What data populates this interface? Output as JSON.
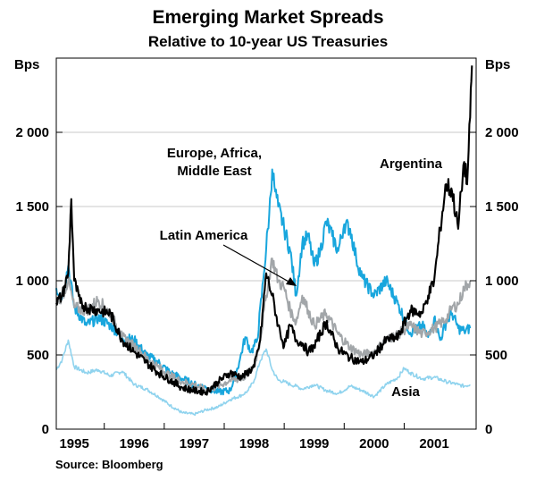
{
  "chart_data": {
    "type": "line",
    "title": "Emerging Market Spreads",
    "subtitle": "Relative to 10-year US Treasuries",
    "ylabel_left": "Bps",
    "ylabel_right": "Bps",
    "ylim": [
      0,
      2500
    ],
    "yticks": [
      0,
      500,
      1000,
      1500,
      2000
    ],
    "ytick_labels": [
      "0",
      "500",
      "1 000",
      "1 500",
      "2 000"
    ],
    "xlim": [
      1994.7,
      2001.7
    ],
    "xticks": [
      1995,
      1996,
      1997,
      1998,
      1999,
      2000,
      2001
    ],
    "xtick_labels": [
      "1995",
      "1996",
      "1997",
      "1998",
      "1999",
      "2000",
      "2001"
    ],
    "source": "Source: Bloomberg",
    "series": [
      {
        "name": "Asia",
        "label": "Asia",
        "color": "#8fd3ee",
        "x": [
          1994.7,
          1994.8,
          1994.9,
          1995.0,
          1995.2,
          1995.4,
          1995.6,
          1995.8,
          1996.0,
          1996.2,
          1996.4,
          1996.6,
          1996.8,
          1997.0,
          1997.2,
          1997.4,
          1997.6,
          1997.8,
          1997.9,
          1998.0,
          1998.1,
          1998.2,
          1998.3,
          1998.4,
          1998.5,
          1998.6,
          1998.7,
          1998.8,
          1999.0,
          1999.2,
          1999.4,
          1999.6,
          1999.8,
          2000.0,
          2000.2,
          2000.4,
          2000.5,
          2000.6,
          2000.8,
          2001.0,
          2001.2,
          2001.4,
          2001.5,
          2001.6
        ],
        "y": [
          400,
          470,
          600,
          420,
          380,
          400,
          360,
          390,
          300,
          270,
          220,
          160,
          110,
          100,
          130,
          150,
          200,
          230,
          260,
          330,
          460,
          540,
          400,
          330,
          320,
          300,
          290,
          270,
          300,
          260,
          240,
          290,
          260,
          220,
          300,
          350,
          410,
          380,
          340,
          350,
          320,
          300,
          290,
          300
        ]
      },
      {
        "name": "Europe, Africa, Middle East",
        "label": "Europe, Africa,\nMiddle East",
        "color": "#18a6dd",
        "x": [
          1994.7,
          1994.8,
          1994.9,
          1995.0,
          1995.2,
          1995.4,
          1995.6,
          1995.8,
          1996.0,
          1996.2,
          1996.4,
          1996.6,
          1996.8,
          1997.0,
          1997.2,
          1997.4,
          1997.6,
          1997.75,
          1997.85,
          1997.95,
          1998.05,
          1998.15,
          1998.25,
          1998.3,
          1998.35,
          1998.4,
          1998.5,
          1998.6,
          1998.7,
          1998.8,
          1998.9,
          1999.0,
          1999.1,
          1999.2,
          1999.3,
          1999.4,
          1999.5,
          1999.6,
          1999.7,
          1999.8,
          2000.0,
          2000.2,
          2000.4,
          2000.6,
          2000.8,
          2000.9,
          2001.0,
          2001.1,
          2001.2,
          2001.3,
          2001.4,
          2001.5,
          2001.6
        ],
        "y": [
          950,
          900,
          1100,
          820,
          700,
          750,
          700,
          620,
          600,
          500,
          450,
          380,
          340,
          300,
          280,
          250,
          260,
          450,
          620,
          520,
          600,
          1000,
          1450,
          1750,
          1600,
          1500,
          1350,
          1200,
          900,
          1250,
          1300,
          1100,
          1200,
          1400,
          1300,
          1200,
          1380,
          1350,
          1150,
          1020,
          900,
          1000,
          840,
          650,
          700,
          620,
          750,
          600,
          720,
          780,
          680,
          660,
          680
        ]
      },
      {
        "name": "Latin America",
        "label": "Latin America",
        "color": "#a2a6a9",
        "x": [
          1994.7,
          1994.8,
          1994.9,
          1995.0,
          1995.2,
          1995.4,
          1995.6,
          1995.8,
          1996.0,
          1996.2,
          1996.4,
          1996.6,
          1996.8,
          1997.0,
          1997.2,
          1997.4,
          1997.6,
          1997.8,
          1998.0,
          1998.1,
          1998.2,
          1998.3,
          1998.4,
          1998.5,
          1998.6,
          1998.7,
          1998.8,
          1998.9,
          1999.0,
          1999.2,
          1999.4,
          1999.6,
          1999.8,
          2000.0,
          2000.2,
          2000.4,
          2000.6,
          2000.8,
          2001.0,
          2001.2,
          2001.3,
          2001.4,
          2001.5,
          2001.6
        ],
        "y": [
          850,
          900,
          1000,
          820,
          800,
          870,
          780,
          620,
          560,
          480,
          420,
          360,
          320,
          300,
          260,
          290,
          330,
          340,
          420,
          600,
          900,
          1150,
          1000,
          950,
          800,
          720,
          900,
          800,
          700,
          780,
          640,
          550,
          500,
          520,
          600,
          640,
          700,
          640,
          680,
          740,
          820,
          840,
          950,
          1000
        ]
      },
      {
        "name": "Argentina",
        "label": "Argentina",
        "color": "#000000",
        "x": [
          1994.7,
          1994.8,
          1994.9,
          1994.95,
          1995.0,
          1995.1,
          1995.2,
          1995.4,
          1995.6,
          1995.8,
          1996.0,
          1996.2,
          1996.4,
          1996.6,
          1996.8,
          1997.0,
          1997.2,
          1997.4,
          1997.6,
          1997.8,
          1998.0,
          1998.1,
          1998.2,
          1998.3,
          1998.4,
          1998.5,
          1998.6,
          1998.7,
          1998.8,
          1998.9,
          1999.0,
          1999.2,
          1999.4,
          1999.6,
          1999.8,
          2000.0,
          2000.2,
          2000.4,
          2000.6,
          2000.8,
          2000.9,
          2001.0,
          2001.1,
          2001.2,
          2001.3,
          2001.4,
          2001.45,
          2001.5,
          2001.55,
          2001.6,
          2001.63
        ],
        "y": [
          850,
          900,
          1050,
          1550,
          1000,
          850,
          820,
          800,
          780,
          600,
          520,
          450,
          380,
          330,
          280,
          260,
          250,
          320,
          380,
          350,
          420,
          600,
          1050,
          900,
          700,
          560,
          700,
          600,
          580,
          520,
          560,
          720,
          540,
          480,
          450,
          500,
          600,
          620,
          800,
          780,
          900,
          1000,
          1350,
          1650,
          1600,
          1350,
          1600,
          1800,
          1650,
          2100,
          2450
        ]
      }
    ],
    "annotations": [
      {
        "text": "Argentina",
        "series": "Argentina"
      },
      {
        "text": "Europe, Africa,\nMiddle East",
        "series": "Europe, Africa, Middle East"
      },
      {
        "text": "Latin America",
        "series": "Latin America",
        "arrow": true
      },
      {
        "text": "Asia",
        "series": "Asia"
      }
    ]
  }
}
